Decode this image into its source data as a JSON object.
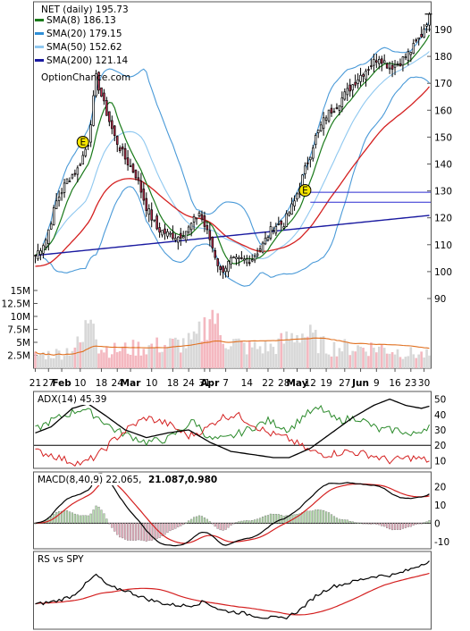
{
  "chart_data": {
    "type": "line",
    "source_label": "OptionChance.com",
    "price_panel": {
      "title": "NET (daily) 195.73",
      "legend": [
        {
          "label": "SMA(8) 186.13",
          "color": "#1a7a1a"
        },
        {
          "label": "SMA(20) 179.15",
          "color": "#2f8fd6"
        },
        {
          "label": "SMA(50) 152.62",
          "color": "#8fc8f0"
        },
        {
          "label": "SMA(200) 121.14",
          "color": "#1a1aa0"
        }
      ],
      "y_ticks": [
        "190",
        "180",
        "170",
        "160",
        "150",
        "140",
        "130",
        "120",
        "110",
        "100",
        "90"
      ],
      "volume_ticks": [
        "15M",
        "12.5M",
        "10M",
        "7.5M",
        "5M",
        "2.5M"
      ],
      "ylim": [
        85,
        197
      ],
      "hlines": [
        129.5,
        125.8
      ],
      "x_tick_labels": [
        "21",
        "27",
        "Feb",
        "10",
        "18",
        "24",
        "Mar",
        "10",
        "18",
        "24",
        "31",
        "Apr",
        "7",
        "14",
        "22",
        "28",
        "May",
        "12",
        "19",
        "27",
        "Jun",
        "9",
        "16",
        "23",
        "30"
      ],
      "earnings_markers": [
        "E",
        "E"
      ]
    },
    "adx_panel": {
      "title": "ADX(14) 45.39",
      "y_ticks": [
        "50",
        "40",
        "30",
        "20",
        "10"
      ],
      "ylim": [
        5,
        55
      ]
    },
    "macd_panel": {
      "title": "MACD(8,40,9) 22.065,",
      "signal": "21.087,",
      "hist": "0.980",
      "y_ticks": [
        "20",
        "10",
        "0",
        "-10"
      ],
      "ylim": [
        -14,
        28
      ]
    },
    "rs_panel": {
      "title": "RS vs SPY"
    },
    "close_key_points": [
      [
        0,
        106
      ],
      [
        4,
        112
      ],
      [
        8,
        126
      ],
      [
        12,
        134
      ],
      [
        16,
        138
      ],
      [
        20,
        148
      ],
      [
        23,
        172
      ],
      [
        26,
        162
      ],
      [
        30,
        150
      ],
      [
        34,
        142
      ],
      [
        38,
        136
      ],
      [
        42,
        124
      ],
      [
        46,
        116
      ],
      [
        50,
        114
      ],
      [
        54,
        113
      ],
      [
        58,
        116
      ],
      [
        62,
        122
      ],
      [
        66,
        112
      ],
      [
        70,
        100
      ],
      [
        74,
        104
      ],
      [
        78,
        104
      ],
      [
        82,
        105
      ],
      [
        86,
        110
      ],
      [
        90,
        117
      ],
      [
        94,
        118
      ],
      [
        98,
        126
      ],
      [
        102,
        138
      ],
      [
        106,
        150
      ],
      [
        110,
        158
      ],
      [
        114,
        162
      ],
      [
        118,
        167
      ],
      [
        122,
        172
      ],
      [
        126,
        176
      ],
      [
        130,
        180
      ],
      [
        134,
        176
      ],
      [
        138,
        178
      ],
      [
        142,
        182
      ],
      [
        146,
        188
      ],
      [
        149,
        195.7
      ]
    ],
    "volume_key_points": [
      [
        0,
        2.5
      ],
      [
        10,
        3
      ],
      [
        18,
        5
      ],
      [
        20,
        10
      ],
      [
        22,
        13
      ],
      [
        24,
        4
      ],
      [
        30,
        3.5
      ],
      [
        40,
        4
      ],
      [
        50,
        4.5
      ],
      [
        60,
        5
      ],
      [
        64,
        8
      ],
      [
        66,
        11
      ],
      [
        68,
        10
      ],
      [
        70,
        6
      ],
      [
        80,
        4
      ],
      [
        90,
        4
      ],
      [
        100,
        7
      ],
      [
        104,
        6
      ],
      [
        110,
        4
      ],
      [
        120,
        4
      ],
      [
        130,
        4
      ],
      [
        140,
        3
      ],
      [
        149,
        2.5
      ]
    ]
  }
}
